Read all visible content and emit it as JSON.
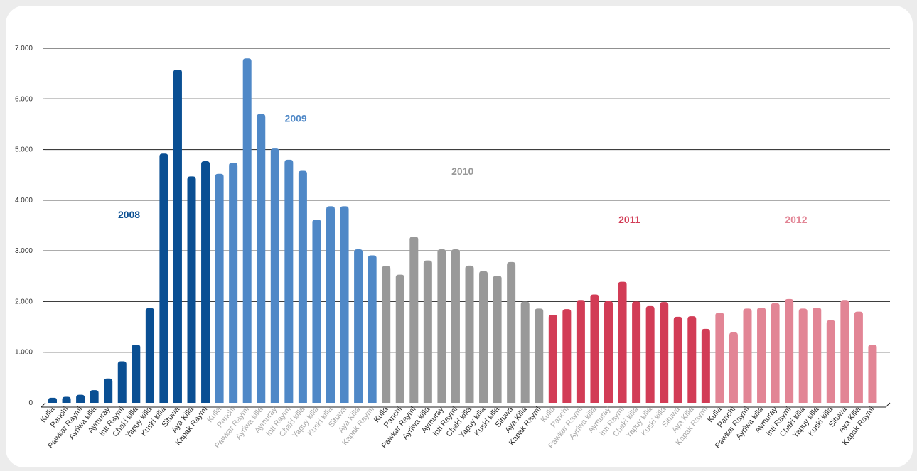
{
  "chart_data": {
    "type": "bar",
    "title": "",
    "xlabel": "",
    "ylabel": "",
    "ylim": [
      0,
      7000
    ],
    "yticks": [
      "0",
      "1.000",
      "2.000",
      "3.000",
      "4.000",
      "5.000",
      "6.000",
      "7.000"
    ],
    "grid": true,
    "legend": "none",
    "groups": [
      {
        "name": "2008",
        "color": "#0a4f93",
        "label_color": "#0a4f93",
        "tick_color": "#333333",
        "label_value_y": 3650,
        "categories": [
          "Kulla",
          "Panchi",
          "Pawkar Raymi",
          "Ayriwa killa",
          "Aymuray",
          "Inti Raymi",
          "Chaki killa",
          "Yapuy killa",
          "Kuski killa",
          "Situwa",
          "Aya Killa",
          "Kapak Raymi"
        ],
        "values": [
          100,
          120,
          160,
          250,
          480,
          820,
          1150,
          1870,
          4920,
          6580,
          4470,
          4770
        ]
      },
      {
        "name": "2009",
        "color": "#4f88c7",
        "label_color": "#4f88c7",
        "tick_color": "#a8a8a8",
        "label_value_y": 5550,
        "categories": [
          "Kulla",
          "Panchi",
          "Pawkar Raymi",
          "Ayriwa killa",
          "Aymuray",
          "Inti Raymi",
          "Chaki killa",
          "Yapuy killa",
          "Kuski killa",
          "Situwa",
          "Aya Killa",
          "Kapak Raymi"
        ],
        "values": [
          4520,
          4740,
          6800,
          5700,
          5020,
          4800,
          4580,
          3620,
          3880,
          3880,
          3030,
          2910
        ]
      },
      {
        "name": "2010",
        "color": "#999999",
        "label_color": "#999999",
        "tick_color": "#333333",
        "label_value_y": 4500,
        "categories": [
          "Kulla",
          "Panchi",
          "Pawkar Raymi",
          "Ayriwa killa",
          "Aymuray",
          "Inti Raymi",
          "Chaki killa",
          "Yapuy killa",
          "Kuski killa",
          "Situwa",
          "Aya Killa",
          "Kapak Raymi"
        ],
        "values": [
          2700,
          2530,
          3280,
          2810,
          3030,
          3030,
          2710,
          2600,
          2510,
          2780,
          2000,
          1860
        ]
      },
      {
        "name": "2011",
        "color": "#d23c56",
        "label_color": "#d23c56",
        "tick_color": "#a8a8a8",
        "label_value_y": 3550,
        "categories": [
          "Kulla",
          "Panchi",
          "Pawkar Raymi",
          "Ayriwa killa",
          "Aymuray",
          "Inti Raymi",
          "Chaki killa",
          "Yapuy killa",
          "Kuski killa",
          "Situwa",
          "Aya Killa",
          "Kapak Raymi"
        ],
        "values": [
          1740,
          1850,
          2030,
          2140,
          2010,
          2390,
          2000,
          1910,
          1990,
          1700,
          1710,
          1460
        ]
      },
      {
        "name": "2012",
        "color": "#e28595",
        "label_color": "#e28595",
        "tick_color": "#333333",
        "label_value_y": 3550,
        "categories": [
          "Kulla",
          "Panchi",
          "Pawkar Raymi",
          "Ayriwa killa",
          "Aymuray",
          "Inti Raymi",
          "Chaki killa",
          "Yapuy killa",
          "Kuski killa",
          "Situwa",
          "Aya Killa",
          "Kapak Raymi"
        ],
        "values": [
          1780,
          1390,
          1860,
          1880,
          1970,
          2050,
          1860,
          1880,
          1630,
          2030,
          1800,
          1150
        ]
      }
    ]
  }
}
